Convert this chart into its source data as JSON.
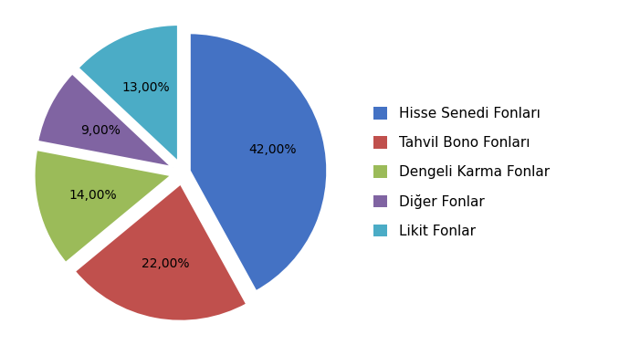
{
  "labels": [
    "Hisse Senedi Fonları",
    "Tahvil Bono Fonları",
    "Dengeli Karma Fonlar",
    "Diğer Fonlar",
    "Likit Fonlar"
  ],
  "values": [
    42,
    22,
    14,
    9,
    13
  ],
  "colors": [
    "#4472C4",
    "#C0504D",
    "#9BBB59",
    "#8064A2",
    "#4BACC6"
  ],
  "explode": [
    0.05,
    0.08,
    0.08,
    0.08,
    0.08
  ],
  "autopct_labels": [
    "42,00%",
    "22,00%",
    "14,00%",
    "9,00%",
    "13,00%"
  ],
  "figsize": [
    6.9,
    3.78
  ],
  "dpi": 100,
  "start_angle": 90,
  "legend_fontsize": 11,
  "autopct_fontsize": 10
}
